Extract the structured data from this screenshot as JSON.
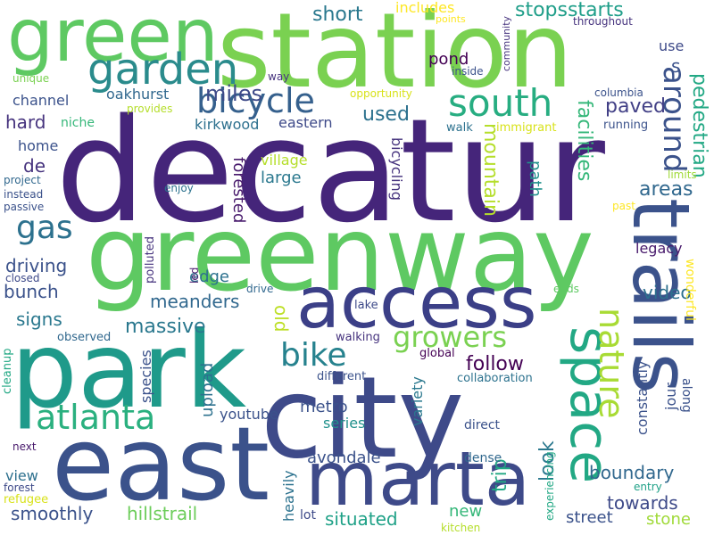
{
  "words": [
    {
      "text": "decatur",
      "color": "#45257a"
    },
    {
      "text": "station",
      "color": "#7ad151"
    },
    {
      "text": "greenway",
      "color": "#5ec962"
    },
    {
      "text": "park",
      "color": "#1f9a8a"
    },
    {
      "text": "city",
      "color": "#3e4a89"
    },
    {
      "text": "east",
      "color": "#3b528b"
    },
    {
      "text": "green",
      "color": "#5ec962"
    },
    {
      "text": "marta",
      "color": "#3e4a89"
    },
    {
      "text": "access",
      "color": "#3b3f87"
    },
    {
      "text": "trails",
      "color": "#3b528b"
    },
    {
      "text": "space",
      "color": "#22a884"
    },
    {
      "text": "garden",
      "color": "#2a8b8c"
    },
    {
      "text": "nature",
      "color": "#a8db34"
    },
    {
      "text": "atlanta",
      "color": "#2ab07f"
    },
    {
      "text": "bicycle",
      "color": "#35608d"
    },
    {
      "text": "south",
      "color": "#27ad81"
    },
    {
      "text": "around",
      "color": "#3b528b"
    },
    {
      "text": "bike",
      "color": "#26828e"
    },
    {
      "text": "growers",
      "color": "#7ad151"
    },
    {
      "text": "gas",
      "color": "#2c718e"
    },
    {
      "text": "pedestrian",
      "color": "#22a884"
    },
    {
      "text": "miles",
      "color": "#3e4a89"
    },
    {
      "text": "short",
      "color": "#2a788e"
    },
    {
      "text": "stopsstarts",
      "color": "#1f9e89"
    },
    {
      "text": "paved",
      "color": "#424086"
    },
    {
      "text": "facilities",
      "color": "#35b779"
    },
    {
      "text": "mountain",
      "color": "#b5de2b"
    },
    {
      "text": "used",
      "color": "#2c718e"
    },
    {
      "text": "oakhurst",
      "color": "#31688e"
    },
    {
      "text": "hard",
      "color": "#46337e"
    },
    {
      "text": "channel",
      "color": "#3b528b"
    },
    {
      "text": "kirkwood",
      "color": "#2d708e"
    },
    {
      "text": "niche",
      "color": "#35b779"
    },
    {
      "text": "eastern",
      "color": "#3e4a89"
    },
    {
      "text": "bicycling",
      "color": "#46337e"
    },
    {
      "text": "pond",
      "color": "#440154"
    },
    {
      "text": "village",
      "color": "#b5de2b"
    },
    {
      "text": "home",
      "color": "#3b528b"
    },
    {
      "text": "de",
      "color": "#46337e"
    },
    {
      "text": "large",
      "color": "#2a788e"
    },
    {
      "text": "forested",
      "color": "#481a6c"
    },
    {
      "text": "path",
      "color": "#21918c"
    },
    {
      "text": "areas",
      "color": "#31688e"
    },
    {
      "text": "driving",
      "color": "#3b528b"
    },
    {
      "text": "bunch",
      "color": "#3b528b"
    },
    {
      "text": "edge",
      "color": "#2c718e"
    },
    {
      "text": "meanders",
      "color": "#31688e"
    },
    {
      "text": "old",
      "color": "#bddf26"
    },
    {
      "text": "legacy",
      "color": "#481a6c"
    },
    {
      "text": "video",
      "color": "#2d708e"
    },
    {
      "text": "signs",
      "color": "#2a788e"
    },
    {
      "text": "massive",
      "color": "#2a788e"
    },
    {
      "text": "follow",
      "color": "#440154"
    },
    {
      "text": "look",
      "color": "#2a788e"
    },
    {
      "text": "upload",
      "color": "#2c718e"
    },
    {
      "text": "youtube",
      "color": "#3b528b"
    },
    {
      "text": "metro",
      "color": "#3b528b"
    },
    {
      "text": "series",
      "color": "#21918c"
    },
    {
      "text": "avondale",
      "color": "#3b528b"
    },
    {
      "text": "trip",
      "color": "#22a884"
    },
    {
      "text": "boundary",
      "color": "#31688e"
    },
    {
      "text": "towards",
      "color": "#3e4a89"
    },
    {
      "text": "smoothly",
      "color": "#3b528b"
    },
    {
      "text": "hillstrail",
      "color": "#6ccd5a"
    },
    {
      "text": "situated",
      "color": "#1fa187"
    },
    {
      "text": "new",
      "color": "#35b779"
    },
    {
      "text": "street",
      "color": "#3b528b"
    },
    {
      "text": "stone",
      "color": "#a0da39"
    },
    {
      "text": "includes",
      "color": "#fde725"
    },
    {
      "text": "s",
      "color": "#3b528b"
    },
    {
      "text": "use",
      "color": "#3e4a89"
    },
    {
      "text": "wonderful",
      "color": "#fde725"
    },
    {
      "text": "constantly",
      "color": "#3b528b"
    },
    {
      "text": "jour",
      "color": "#3b528b"
    },
    {
      "text": "variety",
      "color": "#2a788e"
    },
    {
      "text": "heavily",
      "color": "#2c728e"
    },
    {
      "text": "view",
      "color": "#2d708e"
    },
    {
      "text": "species",
      "color": "#3b528b"
    },
    {
      "text": "cleanup",
      "color": "#22a884"
    },
    {
      "text": "next",
      "color": "#481a6c"
    },
    {
      "text": "refugee",
      "color": "#d8e219"
    },
    {
      "text": "forest",
      "color": "#3e4a89"
    },
    {
      "text": "kitchen",
      "color": "#b5de2b"
    },
    {
      "text": "lot",
      "color": "#3e4a89"
    },
    {
      "text": "dense",
      "color": "#31688e"
    },
    {
      "text": "direct",
      "color": "#3b528b"
    },
    {
      "text": "experiencing",
      "color": "#22a884"
    },
    {
      "text": "entry",
      "color": "#1fa187"
    },
    {
      "text": "along",
      "color": "#3b528b"
    },
    {
      "text": "global",
      "color": "#440154"
    },
    {
      "text": "collaboration",
      "color": "#2c728e"
    },
    {
      "text": "different",
      "color": "#3b528b"
    },
    {
      "text": "walking",
      "color": "#46337e"
    },
    {
      "text": "observed",
      "color": "#31688e"
    },
    {
      "text": "lake",
      "color": "#3e4a89"
    },
    {
      "text": "closed",
      "color": "#3e4a89"
    },
    {
      "text": "led",
      "color": "#481a6c"
    },
    {
      "text": "polluted",
      "color": "#46337e"
    },
    {
      "text": "drive",
      "color": "#31688e"
    },
    {
      "text": "ends",
      "color": "#5ec962"
    },
    {
      "text": "enjoy",
      "color": "#2c728e"
    },
    {
      "text": "past",
      "color": "#fde725"
    },
    {
      "text": "limits",
      "color": "#a0da39"
    },
    {
      "text": "walk",
      "color": "#2c718e"
    },
    {
      "text": "immigrant",
      "color": "#d8e219"
    },
    {
      "text": "running",
      "color": "#3b528b"
    },
    {
      "text": "columbia",
      "color": "#3b528b"
    },
    {
      "text": "community",
      "color": "#46337e"
    },
    {
      "text": "points",
      "color": "#fde725"
    },
    {
      "text": "throughout",
      "color": "#46337e"
    },
    {
      "text": "inside",
      "color": "#3b528b"
    },
    {
      "text": "opportunity",
      "color": "#d8e219"
    },
    {
      "text": "way",
      "color": "#46337e"
    },
    {
      "text": "unique",
      "color": "#7ad151"
    },
    {
      "text": "provides",
      "color": "#b5de2b"
    },
    {
      "text": "project",
      "color": "#31688e"
    },
    {
      "text": "instead",
      "color": "#3b528b"
    },
    {
      "text": "passive",
      "color": "#3b528b"
    }
  ]
}
